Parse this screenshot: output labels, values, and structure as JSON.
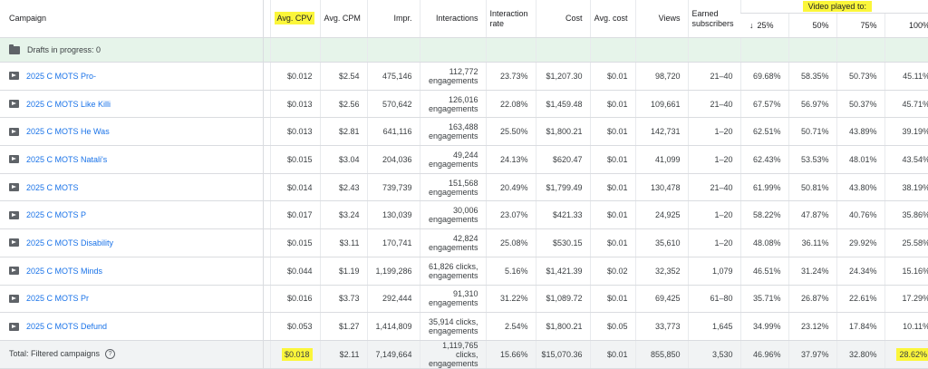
{
  "headers": {
    "campaign": "Campaign",
    "avg_cpv": "Avg. CPV",
    "avg_cpm": "Avg. CPM",
    "impr": "Impr.",
    "interactions": "Interactions",
    "interaction_rate": "Interaction rate",
    "cost": "Cost",
    "avg_cost": "Avg. cost",
    "views": "Views",
    "earned_subscribers": "Earned subscribers",
    "video_played_to": "Video played to:",
    "p25": "25%",
    "p50": "50%",
    "p75": "75%",
    "p100": "100%"
  },
  "drafts_label": "Drafts in progress: 0",
  "rows": [
    {
      "name": "2025 C MOTS Pro-",
      "cpv": "$0.012",
      "cpm": "$2.54",
      "impr": "475,146",
      "interactions": "112,772 engagements",
      "rate": "23.73%",
      "cost": "$1,207.30",
      "avg_cost": "$0.01",
      "views": "98,720",
      "subs": "21–40",
      "p25": "69.68%",
      "p50": "58.35%",
      "p75": "50.73%",
      "p100": "45.11%"
    },
    {
      "name": "2025 C MOTS Like Killi",
      "cpv": "$0.013",
      "cpm": "$2.56",
      "impr": "570,642",
      "interactions": "126,016 engagements",
      "rate": "22.08%",
      "cost": "$1,459.48",
      "avg_cost": "$0.01",
      "views": "109,661",
      "subs": "21–40",
      "p25": "67.57%",
      "p50": "56.97%",
      "p75": "50.37%",
      "p100": "45.71%"
    },
    {
      "name": "2025 C MOTS He Was",
      "cpv": "$0.013",
      "cpm": "$2.81",
      "impr": "641,116",
      "interactions": "163,488 engagements",
      "rate": "25.50%",
      "cost": "$1,800.21",
      "avg_cost": "$0.01",
      "views": "142,731",
      "subs": "1–20",
      "p25": "62.51%",
      "p50": "50.71%",
      "p75": "43.89%",
      "p100": "39.19%"
    },
    {
      "name": "2025 C MOTS Natali's",
      "cpv": "$0.015",
      "cpm": "$3.04",
      "impr": "204,036",
      "interactions": "49,244 engagements",
      "rate": "24.13%",
      "cost": "$620.47",
      "avg_cost": "$0.01",
      "views": "41,099",
      "subs": "1–20",
      "p25": "62.43%",
      "p50": "53.53%",
      "p75": "48.01%",
      "p100": "43.54%"
    },
    {
      "name": "2025 C MOTS",
      "cpv": "$0.014",
      "cpm": "$2.43",
      "impr": "739,739",
      "interactions": "151,568 engagements",
      "rate": "20.49%",
      "cost": "$1,799.49",
      "avg_cost": "$0.01",
      "views": "130,478",
      "subs": "21–40",
      "p25": "61.99%",
      "p50": "50.81%",
      "p75": "43.80%",
      "p100": "38.19%"
    },
    {
      "name": "2025 C MOTS P",
      "cpv": "$0.017",
      "cpm": "$3.24",
      "impr": "130,039",
      "interactions": "30,006 engagements",
      "rate": "23.07%",
      "cost": "$421.33",
      "avg_cost": "$0.01",
      "views": "24,925",
      "subs": "1–20",
      "p25": "58.22%",
      "p50": "47.87%",
      "p75": "40.76%",
      "p100": "35.86%"
    },
    {
      "name": "2025 C MOTS Disability",
      "cpv": "$0.015",
      "cpm": "$3.11",
      "impr": "170,741",
      "interactions": "42,824 engagements",
      "rate": "25.08%",
      "cost": "$530.15",
      "avg_cost": "$0.01",
      "views": "35,610",
      "subs": "1–20",
      "p25": "48.08%",
      "p50": "36.11%",
      "p75": "29.92%",
      "p100": "25.58%"
    },
    {
      "name": "2025 C MOTS Minds",
      "cpv": "$0.044",
      "cpm": "$1.19",
      "impr": "1,199,286",
      "interactions": "61,826 clicks, engagements",
      "rate": "5.16%",
      "cost": "$1,421.39",
      "avg_cost": "$0.02",
      "views": "32,352",
      "subs": "1,079",
      "p25": "46.51%",
      "p50": "31.24%",
      "p75": "24.34%",
      "p100": "15.16%"
    },
    {
      "name": "2025 C MOTS Pr",
      "cpv": "$0.016",
      "cpm": "$3.73",
      "impr": "292,444",
      "interactions": "91,310 engagements",
      "rate": "31.22%",
      "cost": "$1,089.72",
      "avg_cost": "$0.01",
      "views": "69,425",
      "subs": "61–80",
      "p25": "35.71%",
      "p50": "26.87%",
      "p75": "22.61%",
      "p100": "17.29%"
    },
    {
      "name": "2025 C MOTS Defund",
      "cpv": "$0.053",
      "cpm": "$1.27",
      "impr": "1,414,809",
      "interactions": "35,914 clicks, engagements",
      "rate": "2.54%",
      "cost": "$1,800.21",
      "avg_cost": "$0.05",
      "views": "33,773",
      "subs": "1,645",
      "p25": "34.99%",
      "p50": "23.12%",
      "p75": "17.84%",
      "p100": "10.11%"
    }
  ],
  "total": {
    "name": "Total: Filtered campaigns",
    "cpv": "$0.018",
    "cpm": "$2.11",
    "impr": "7,149,664",
    "interactions": "1,119,765 clicks, engagements",
    "rate": "15.66%",
    "cost": "$15,070.36",
    "avg_cost": "$0.01",
    "views": "855,850",
    "subs": "3,530",
    "p25": "46.96%",
    "p50": "37.97%",
    "p75": "32.80%",
    "p100": "28.62%"
  },
  "icons": {
    "sort": "arrow-down-icon",
    "help": "help-circle-icon",
    "video": "video-campaign-icon",
    "folder": "folder-icon"
  },
  "colors": {
    "highlight": "#fbf63a",
    "link": "#1a73e8",
    "drafts_bg": "#e6f4ea",
    "total_bg": "#f1f3f4"
  }
}
